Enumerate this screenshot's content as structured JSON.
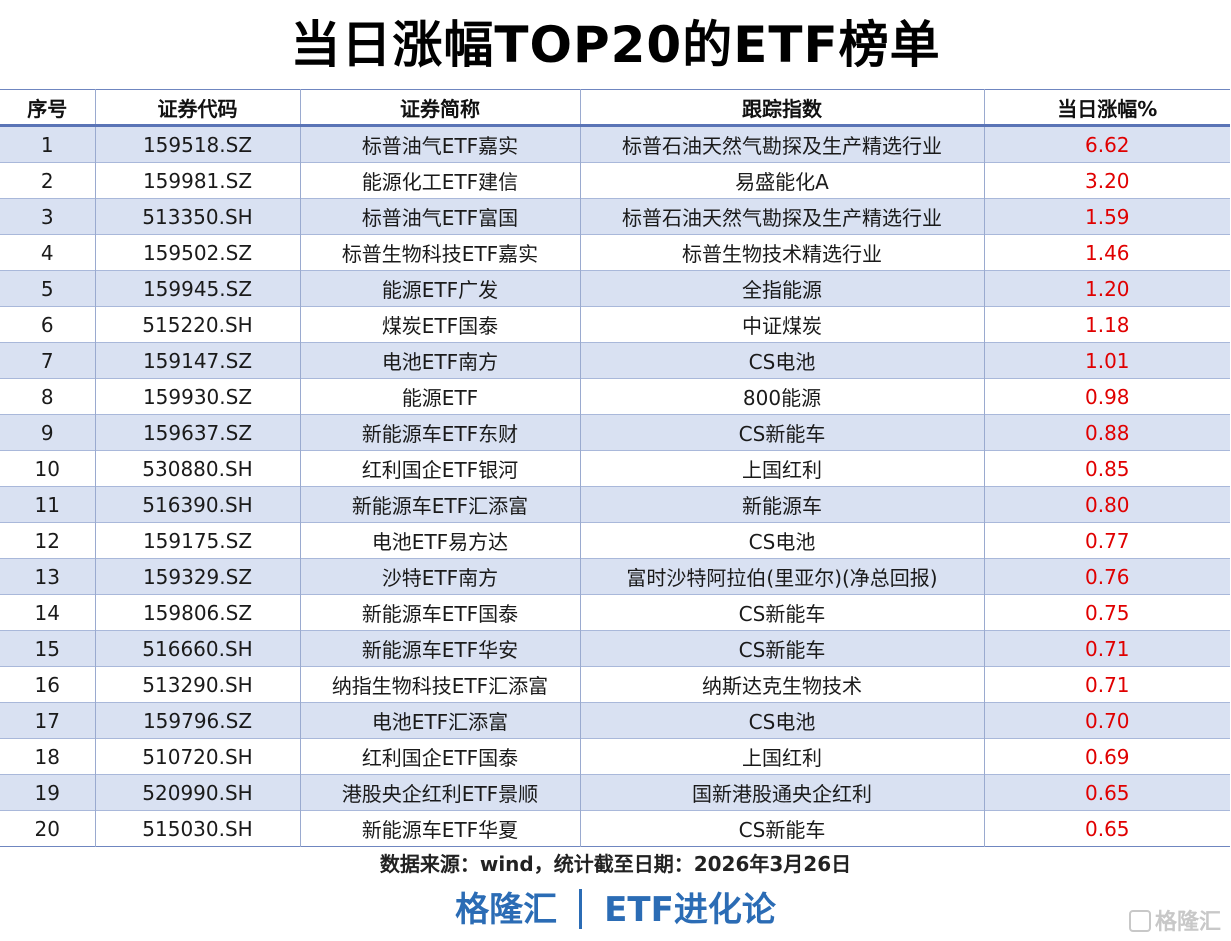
{
  "title": "当日涨幅TOP20的ETF榜单",
  "table": {
    "headers": [
      "序号",
      "证券代码",
      "证券简称",
      "跟踪指数",
      "当日涨幅%"
    ],
    "rows": [
      {
        "no": "1",
        "code": "159518.SZ",
        "name": "标普油气ETF嘉实",
        "index": "标普石油天然气勘探及生产精选行业",
        "change": "6.62"
      },
      {
        "no": "2",
        "code": "159981.SZ",
        "name": "能源化工ETF建信",
        "index": "易盛能化A",
        "change": "3.20"
      },
      {
        "no": "3",
        "code": "513350.SH",
        "name": "标普油气ETF富国",
        "index": "标普石油天然气勘探及生产精选行业",
        "change": "1.59"
      },
      {
        "no": "4",
        "code": "159502.SZ",
        "name": "标普生物科技ETF嘉实",
        "index": "标普生物技术精选行业",
        "change": "1.46"
      },
      {
        "no": "5",
        "code": "159945.SZ",
        "name": "能源ETF广发",
        "index": "全指能源",
        "change": "1.20"
      },
      {
        "no": "6",
        "code": "515220.SH",
        "name": "煤炭ETF国泰",
        "index": "中证煤炭",
        "change": "1.18"
      },
      {
        "no": "7",
        "code": "159147.SZ",
        "name": "电池ETF南方",
        "index": "CS电池",
        "change": "1.01"
      },
      {
        "no": "8",
        "code": "159930.SZ",
        "name": "能源ETF",
        "index": "800能源",
        "change": "0.98"
      },
      {
        "no": "9",
        "code": "159637.SZ",
        "name": "新能源车ETF东财",
        "index": "CS新能车",
        "change": "0.88"
      },
      {
        "no": "10",
        "code": "530880.SH",
        "name": "红利国企ETF银河",
        "index": "上国红利",
        "change": "0.85"
      },
      {
        "no": "11",
        "code": "516390.SH",
        "name": "新能源车ETF汇添富",
        "index": "新能源车",
        "change": "0.80"
      },
      {
        "no": "12",
        "code": "159175.SZ",
        "name": "电池ETF易方达",
        "index": "CS电池",
        "change": "0.77"
      },
      {
        "no": "13",
        "code": "159329.SZ",
        "name": "沙特ETF南方",
        "index": "富时沙特阿拉伯(里亚尔)(净总回报)",
        "change": "0.76"
      },
      {
        "no": "14",
        "code": "159806.SZ",
        "name": "新能源车ETF国泰",
        "index": "CS新能车",
        "change": "0.75"
      },
      {
        "no": "15",
        "code": "516660.SH",
        "name": "新能源车ETF华安",
        "index": "CS新能车",
        "change": "0.71"
      },
      {
        "no": "16",
        "code": "513290.SH",
        "name": "纳指生物科技ETF汇添富",
        "index": "纳斯达克生物技术",
        "change": "0.71"
      },
      {
        "no": "17",
        "code": "159796.SZ",
        "name": "电池ETF汇添富",
        "index": "CS电池",
        "change": "0.70"
      },
      {
        "no": "18",
        "code": "510720.SH",
        "name": "红利国企ETF国泰",
        "index": "上国红利",
        "change": "0.69"
      },
      {
        "no": "19",
        "code": "520990.SH",
        "name": "港股央企红利ETF景顺",
        "index": "国新港股通央企红利",
        "change": "0.65"
      },
      {
        "no": "20",
        "code": "515030.SH",
        "name": "新能源车ETF华夏",
        "index": "CS新能车",
        "change": "0.65"
      }
    ]
  },
  "source_note": "数据来源：wind，统计截至日期：2026年3月26日",
  "brand": {
    "left": "格隆汇",
    "right": "ETF进化论"
  },
  "watermark": "格隆汇",
  "colors": {
    "stripe": "#d9e1f2",
    "rise": "#e00000",
    "brand": "#2b6cb5"
  }
}
